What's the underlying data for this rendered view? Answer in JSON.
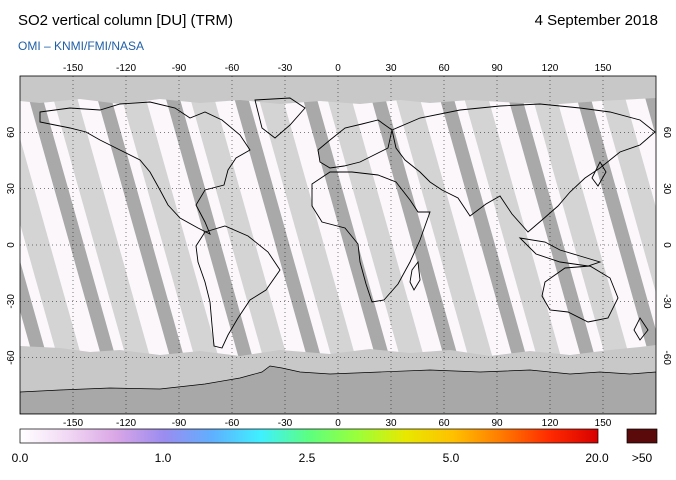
{
  "header": {
    "title": "SO2 vertical column [DU] (TRM)",
    "date": "4 September 2018",
    "credit": "OMI  –  KNMI/FMI/NASA"
  },
  "map": {
    "lon_ticks": [
      -150,
      -120,
      -90,
      -60,
      -30,
      0,
      30,
      60,
      90,
      120,
      150
    ],
    "lat_ticks": [
      60,
      30,
      0,
      -30,
      -60
    ],
    "colors": {
      "no_data": "#c8c8c8",
      "swath_gap": "#d4d4d4",
      "dark_swath": "#a9a9a9",
      "background": "#fbf7fb",
      "coast": "#000000"
    }
  },
  "colorbar": {
    "labels": [
      "0.0",
      "1.0",
      "2.5",
      "5.0",
      "20.0"
    ],
    "overflow_label": ">50",
    "overflow_color": "#5a0a0a",
    "stops": [
      "#ffffff",
      "#f1d8f4",
      "#d9a6e6",
      "#9a8cf0",
      "#5fb0ff",
      "#3ff0ff",
      "#5cff80",
      "#9aff3a",
      "#e8e800",
      "#ffc000",
      "#ff7a00",
      "#ff2a00",
      "#d80000"
    ]
  }
}
